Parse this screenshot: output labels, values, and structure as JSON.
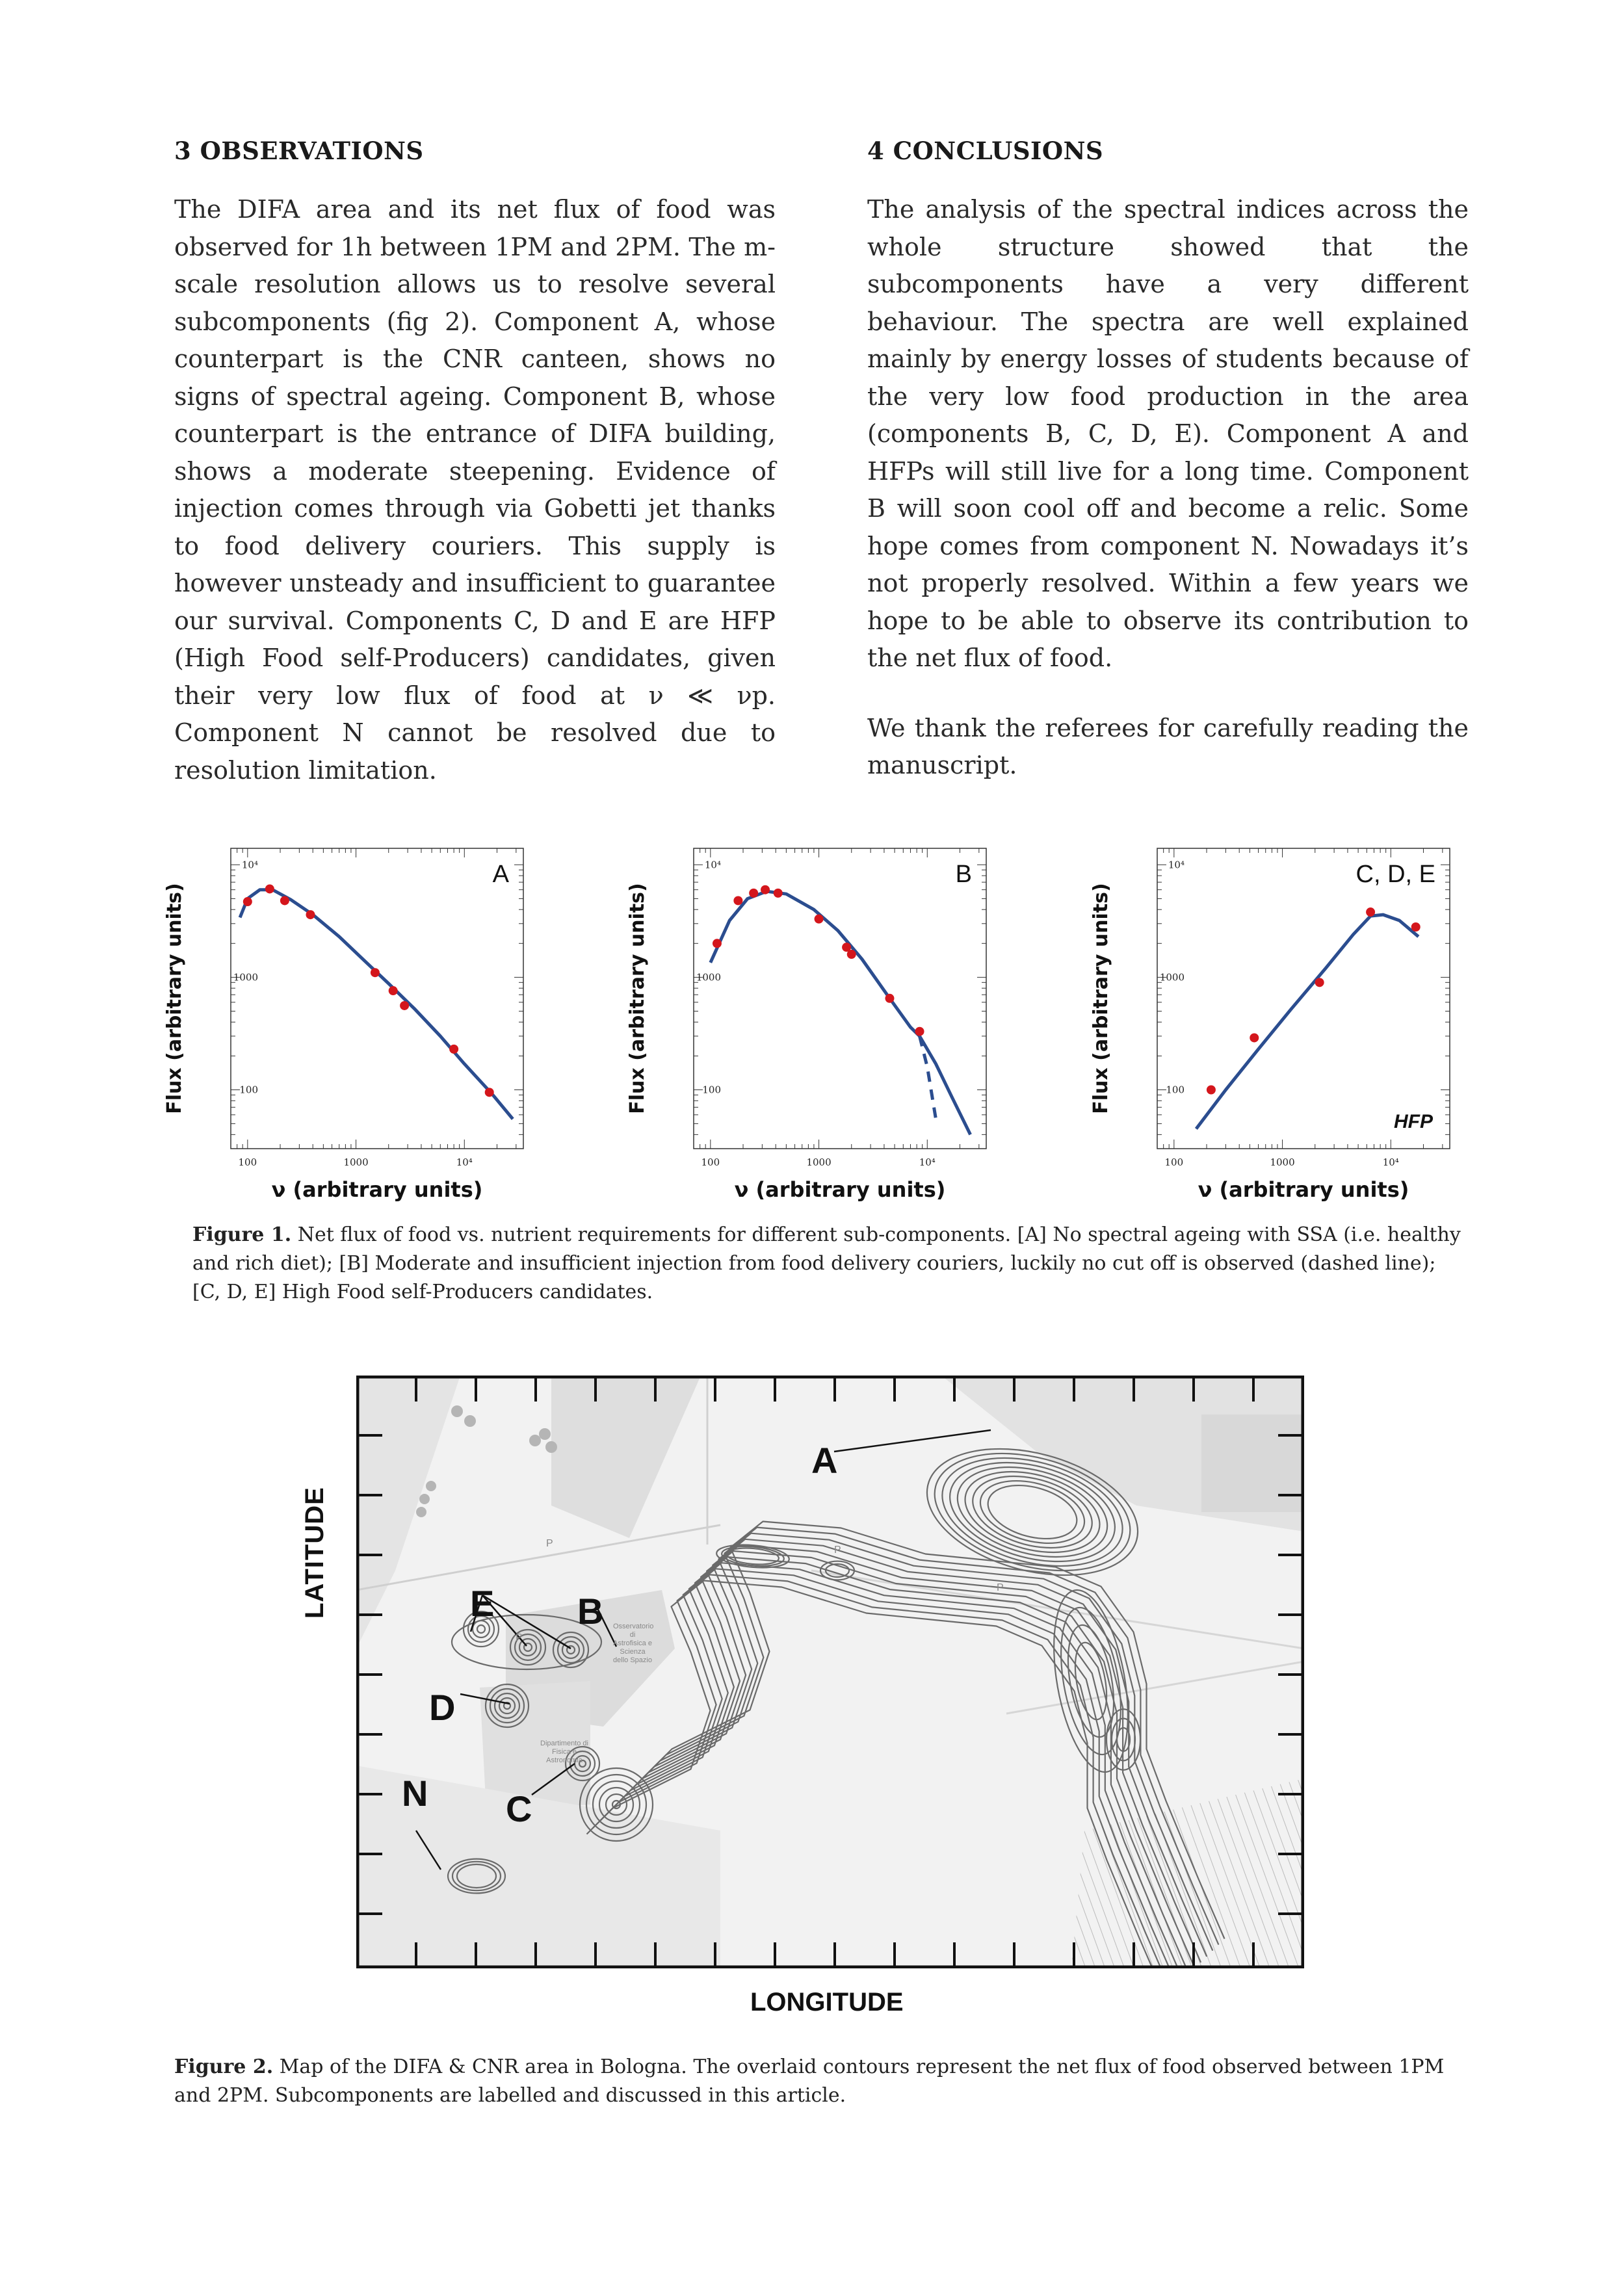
{
  "sections": {
    "observations": {
      "heading": "3 OBSERVATIONS",
      "text": "The DIFA area and its net flux of food was observed for 1h between 1PM and 2PM. The m-scale resolution allows us to resolve several subcomponents (fig 2). Component A, whose counterpart is the CNR canteen, shows no signs of spectral ageing. Component B, whose counterpart is the entrance of DIFA building, shows a moderate steepening. Evidence of injection comes through via Gobetti jet thanks to food delivery couriers. This supply is however unsteady and insufficient to guarantee our survival. Components C, D and E are HFP (High Food self-Producers) candidates, given their very low flux of food at ν ≪ νp. Component N cannot be resolved due to resolution limitation."
    },
    "conclusions": {
      "heading": "4 CONCLUSIONS",
      "text": "The analysis of the spectral indices across the whole structure showed that the subcomponents have a very different behaviour. The spectra are well explained mainly by energy losses of students because of the very low food production in the area (components B, C, D, E). Component A and HFPs will still live for a long time. Component B will soon cool off and become a relic. Some hope comes from component N. Nowadays it’s not properly resolved. Within a few years we hope to be able to observe its contribution to the net flux of food.",
      "thanks": "We thank the referees for carefully reading the manuscript."
    }
  },
  "figure1": {
    "caption_label": "Figure 1.",
    "caption_text": "Net flux of food vs. nutrient requirements for different sub-components. [A] No spectral ageing with SSA (i.e. healthy and rich diet); [B] Moderate and insufficient injection from food delivery couriers, luckily no cut off is observed (dashed line); [C, D, E] High Food self-Producers candidates."
  },
  "chart_data": [
    {
      "type": "scatter",
      "panel_label": "A",
      "xlabel": "ν (arbitrary units)",
      "ylabel": "Flux (arbitrary units)",
      "xscale": "log",
      "yscale": "log",
      "xlim": [
        70,
        35000
      ],
      "ylim": [
        30,
        14000
      ],
      "xticks": [
        100,
        1000,
        10000
      ],
      "xtick_labels": [
        "100",
        "1000",
        "10⁴"
      ],
      "yticks": [
        100,
        1000,
        10000
      ],
      "ytick_labels": [
        "100",
        "1000",
        "10⁴"
      ],
      "points": [
        [
          100,
          4700
        ],
        [
          160,
          6100
        ],
        [
          220,
          4800
        ],
        [
          380,
          3600
        ],
        [
          1500,
          1100
        ],
        [
          2200,
          760
        ],
        [
          2800,
          560
        ],
        [
          8000,
          230
        ],
        [
          17000,
          95
        ]
      ],
      "model_curve": [
        [
          85,
          3400
        ],
        [
          100,
          5000
        ],
        [
          130,
          6000
        ],
        [
          170,
          6000
        ],
        [
          250,
          4900
        ],
        [
          400,
          3600
        ],
        [
          700,
          2300
        ],
        [
          1200,
          1400
        ],
        [
          2000,
          880
        ],
        [
          3500,
          520
        ],
        [
          6000,
          300
        ],
        [
          10000,
          170
        ],
        [
          18000,
          92
        ],
        [
          28000,
          55
        ]
      ],
      "colors": {
        "points": "#d4161c",
        "curve": "#2b4d8f"
      }
    },
    {
      "type": "scatter",
      "panel_label": "B",
      "xlabel": "ν (arbitrary units)",
      "ylabel": "Flux (arbitrary units)",
      "xscale": "log",
      "yscale": "log",
      "xlim": [
        70,
        35000
      ],
      "ylim": [
        30,
        14000
      ],
      "xticks": [
        100,
        1000,
        10000
      ],
      "xtick_labels": [
        "100",
        "1000",
        "10⁴"
      ],
      "yticks": [
        100,
        1000,
        10000
      ],
      "ytick_labels": [
        "100",
        "1000",
        "10⁴"
      ],
      "points": [
        [
          115,
          2000
        ],
        [
          180,
          4800
        ],
        [
          250,
          5600
        ],
        [
          320,
          6000
        ],
        [
          420,
          5600
        ],
        [
          1000,
          3300
        ],
        [
          1800,
          1850
        ],
        [
          2000,
          1600
        ],
        [
          4500,
          650
        ],
        [
          8500,
          330
        ]
      ],
      "model_curve": [
        [
          100,
          1350
        ],
        [
          150,
          3200
        ],
        [
          220,
          5000
        ],
        [
          330,
          5800
        ],
        [
          500,
          5500
        ],
        [
          900,
          4000
        ],
        [
          1500,
          2600
        ],
        [
          2500,
          1450
        ],
        [
          4500,
          650
        ],
        [
          7000,
          360
        ],
        [
          8500,
          300
        ]
      ],
      "dashed_curve": [
        [
          8500,
          300
        ],
        [
          10000,
          160
        ],
        [
          12000,
          55
        ]
      ],
      "tail_curve": [
        [
          8500,
          300
        ],
        [
          12000,
          170
        ],
        [
          17000,
          85
        ],
        [
          25000,
          40
        ]
      ],
      "colors": {
        "points": "#d4161c",
        "curve": "#2b4d8f"
      }
    },
    {
      "type": "scatter",
      "panel_label": "C, D, E",
      "annotation": "HFP",
      "xlabel": "ν (arbitrary units)",
      "ylabel": "Flux (arbitrary units)",
      "xscale": "log",
      "yscale": "log",
      "xlim": [
        70,
        35000
      ],
      "ylim": [
        30,
        14000
      ],
      "xticks": [
        100,
        1000,
        10000
      ],
      "xtick_labels": [
        "100",
        "1000",
        "10⁴"
      ],
      "yticks": [
        100,
        1000,
        10000
      ],
      "ytick_labels": [
        "100",
        "1000",
        "10⁴"
      ],
      "points": [
        [
          220,
          100
        ],
        [
          550,
          290
        ],
        [
          2200,
          900
        ],
        [
          6500,
          3800
        ],
        [
          17000,
          2800
        ]
      ],
      "model_curve": [
        [
          160,
          45
        ],
        [
          300,
          100
        ],
        [
          600,
          230
        ],
        [
          1200,
          520
        ],
        [
          2500,
          1200
        ],
        [
          4500,
          2400
        ],
        [
          6500,
          3500
        ],
        [
          8500,
          3600
        ],
        [
          12000,
          3200
        ],
        [
          18000,
          2300
        ]
      ],
      "colors": {
        "points": "#d4161c",
        "curve": "#2b4d8f"
      }
    }
  ],
  "figure2": {
    "ylabel": "LATITUDE",
    "xlabel": "LONGITUDE",
    "labels": {
      "A": "A",
      "B": "B",
      "C": "C",
      "D": "D",
      "E": "E",
      "N": "N"
    },
    "street_marks": [
      "P",
      "P",
      "P",
      "P"
    ],
    "building_text": "Osservatorio di Astrofisica e Scienza dello Spazio",
    "building_text2": "Dipartimento di Fisica e Astronomia",
    "caption_label": "Figure 2.",
    "caption_text": "Map of the DIFA & CNR area in Bologna. The overlaid contours represent the net flux of food observed between 1PM and 2PM. Subcomponents are labelled and discussed in this article."
  }
}
